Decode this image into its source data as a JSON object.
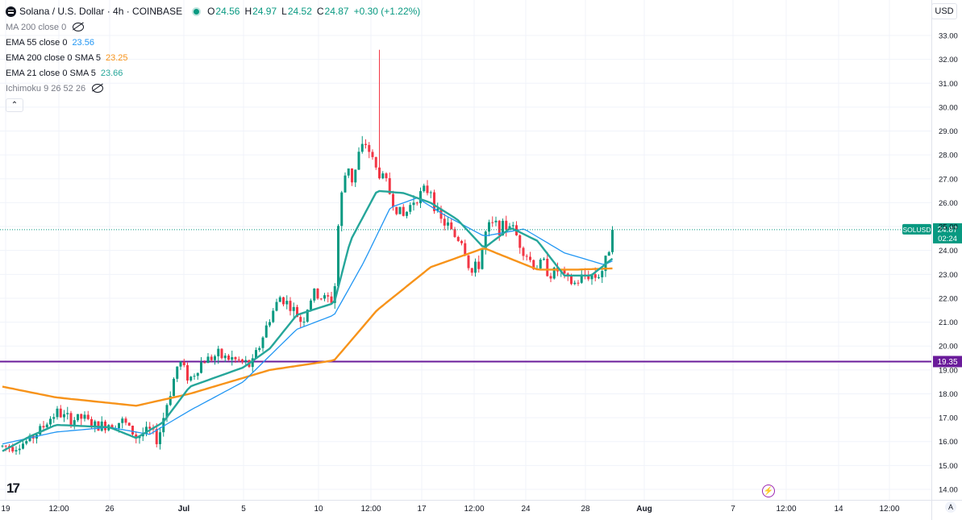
{
  "header": {
    "title": "Solana / U.S. Dollar · 4h · COINBASE",
    "ohlc": {
      "o_label": "O",
      "o": "24.56",
      "h_label": "H",
      "h": "24.97",
      "l_label": "L",
      "l": "24.52",
      "c_label": "C",
      "c": "24.87",
      "change": "+0.30 (+1.22%)"
    },
    "currency": "USD"
  },
  "indicators": [
    {
      "label": "MA 200 close 0",
      "value": "",
      "hidden": true
    },
    {
      "label": "EMA 55 close 0",
      "value": "23.56",
      "color": "#2196f3"
    },
    {
      "label": "EMA 200 close 0 SMA 5",
      "value": "23.25",
      "color": "#f7931a"
    },
    {
      "label": "EMA 21 close 0 SMA 5",
      "value": "23.66",
      "color": "#26a69a"
    },
    {
      "label": "Ichimoku 9 26 52 26",
      "value": "",
      "hidden": true
    }
  ],
  "colors": {
    "up": "#089981",
    "down": "#f23645",
    "ema21": "#26a69a",
    "ema55": "#2196f3",
    "ema200": "#f7931a",
    "hline": "#6a1b9a",
    "grid": "#f0f3fa"
  },
  "chart_data": {
    "type": "candlestick",
    "symbol": "SOLUSD",
    "interval": "4h",
    "y_ticks": [
      "33.00",
      "32.00",
      "31.00",
      "30.00",
      "29.00",
      "28.00",
      "27.00",
      "26.00",
      "25.00",
      "24.00",
      "23.00",
      "22.00",
      "21.00",
      "20.00",
      "19.00",
      "18.00",
      "17.00",
      "16.00",
      "15.00",
      "14.00"
    ],
    "x_ticks": [
      "19",
      "12:00",
      "26",
      "Jul",
      "5",
      "10",
      "12:00",
      "17",
      "12:00",
      "24",
      "28",
      "Aug",
      "7",
      "12:00",
      "14",
      "12:00"
    ],
    "ylim": [
      13.6,
      33.4
    ],
    "last_price": {
      "label": "SOLUSD",
      "value": "24.87",
      "countdown": "02:24"
    },
    "horizontal_line": {
      "value": 19.35,
      "label": "19.35"
    },
    "candle_count": 179,
    "price_path": [
      [
        0,
        15.8
      ],
      [
        6,
        15.85
      ],
      [
        10,
        16.05
      ],
      [
        15,
        16.6
      ],
      [
        20,
        17.25
      ],
      [
        25,
        16.9
      ],
      [
        30,
        17.0
      ],
      [
        35,
        16.6
      ],
      [
        40,
        16.75
      ],
      [
        45,
        16.85
      ],
      [
        50,
        16.2
      ],
      [
        55,
        16.45
      ],
      [
        58,
        16.05
      ],
      [
        62,
        17.8
      ],
      [
        66,
        19.4
      ],
      [
        70,
        18.6
      ],
      [
        75,
        19.4
      ],
      [
        80,
        19.6
      ],
      [
        86,
        19.45
      ],
      [
        90,
        19.3
      ],
      [
        93,
        19.15
      ],
      [
        96,
        20.0
      ],
      [
        100,
        21.2
      ],
      [
        104,
        22.1
      ],
      [
        108,
        21.6
      ],
      [
        112,
        21.0
      ],
      [
        116,
        22.2
      ],
      [
        120,
        22.0
      ],
      [
        124,
        21.9
      ],
      [
        125,
        24.5
      ],
      [
        127,
        26.5
      ],
      [
        129,
        27.7
      ],
      [
        131,
        26.8
      ],
      [
        133,
        28.0
      ],
      [
        136,
        28.5
      ],
      [
        140,
        27.3
      ],
      [
        143,
        27.0
      ],
      [
        146,
        26.0
      ],
      [
        150,
        25.4
      ],
      [
        154,
        26.2
      ],
      [
        157,
        26.4
      ],
      [
        160,
        26.6
      ],
      [
        163,
        25.3
      ],
      [
        166,
        25.1
      ],
      [
        169,
        24.6
      ],
      [
        172,
        24.4
      ],
      [
        175,
        23.0
      ],
      [
        178,
        23.4
      ],
      [
        181,
        24.9
      ],
      [
        184,
        25.1
      ],
      [
        187,
        24.9
      ],
      [
        190,
        25.15
      ],
      [
        193,
        24.4
      ],
      [
        196,
        23.8
      ],
      [
        199,
        23.3
      ],
      [
        202,
        23.5
      ],
      [
        205,
        23.0
      ],
      [
        208,
        23.2
      ],
      [
        211,
        22.7
      ],
      [
        214,
        22.6
      ],
      [
        217,
        22.9
      ],
      [
        220,
        23.0
      ],
      [
        222,
        22.9
      ],
      [
        225,
        23.3
      ],
      [
        227,
        24.3
      ],
      [
        228,
        24.87
      ]
    ],
    "ema21_path": [
      [
        0,
        15.6
      ],
      [
        10,
        16.2
      ],
      [
        20,
        16.7
      ],
      [
        40,
        16.6
      ],
      [
        50,
        16.15
      ],
      [
        60,
        16.8
      ],
      [
        70,
        18.3
      ],
      [
        90,
        19.1
      ],
      [
        100,
        19.9
      ],
      [
        110,
        21.3
      ],
      [
        124,
        21.8
      ],
      [
        130,
        24.4
      ],
      [
        140,
        26.5
      ],
      [
        150,
        26.4
      ],
      [
        160,
        26.0
      ],
      [
        170,
        25.3
      ],
      [
        180,
        24.1
      ],
      [
        190,
        24.95
      ],
      [
        200,
        24.4
      ],
      [
        210,
        22.95
      ],
      [
        220,
        22.95
      ],
      [
        228,
        23.66
      ]
    ],
    "ema55_path": [
      [
        0,
        15.9
      ],
      [
        20,
        16.4
      ],
      [
        40,
        16.6
      ],
      [
        55,
        16.3
      ],
      [
        70,
        17.3
      ],
      [
        90,
        18.5
      ],
      [
        110,
        20.7
      ],
      [
        124,
        21.3
      ],
      [
        135,
        23.5
      ],
      [
        145,
        25.8
      ],
      [
        155,
        26.2
      ],
      [
        165,
        25.5
      ],
      [
        180,
        24.6
      ],
      [
        195,
        24.9
      ],
      [
        210,
        23.9
      ],
      [
        225,
        23.4
      ],
      [
        228,
        23.56
      ]
    ],
    "ema200_path": [
      [
        0,
        18.3
      ],
      [
        20,
        17.85
      ],
      [
        50,
        17.5
      ],
      [
        70,
        18.0
      ],
      [
        100,
        19.0
      ],
      [
        124,
        19.4
      ],
      [
        140,
        21.5
      ],
      [
        160,
        23.3
      ],
      [
        180,
        24.1
      ],
      [
        200,
        23.2
      ],
      [
        215,
        23.2
      ],
      [
        228,
        23.25
      ]
    ]
  }
}
